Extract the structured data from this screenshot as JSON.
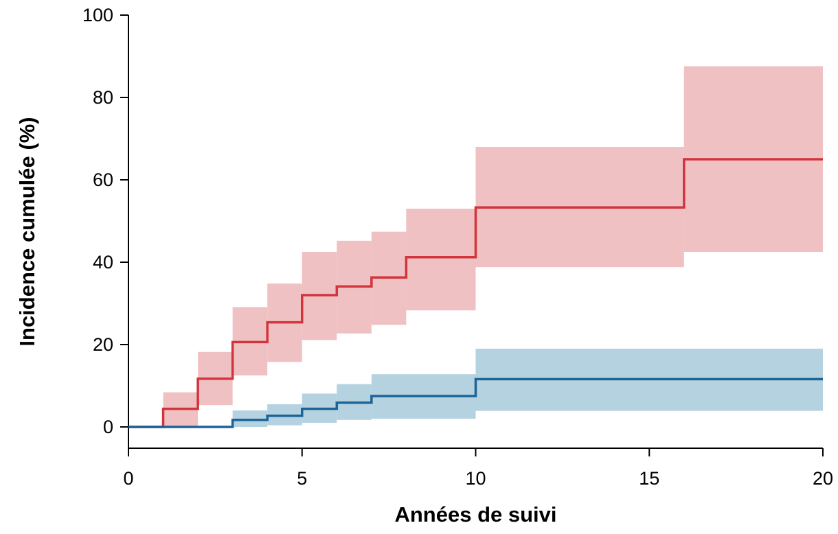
{
  "chart_data": {
    "type": "line",
    "step": true,
    "title": "",
    "xlabel": "Années de suivi",
    "ylabel": "Incidence cumulée (%)",
    "xlim": [
      0,
      20
    ],
    "ylim": [
      -5,
      100
    ],
    "x_ticks": [
      0,
      5,
      10,
      15,
      20
    ],
    "y_ticks": [
      0,
      20,
      40,
      60,
      80,
      100
    ],
    "x_tick_labels": [
      "0",
      "5",
      "10",
      "15",
      "20"
    ],
    "y_tick_labels": [
      "0",
      "20",
      "40",
      "60",
      "80",
      "100"
    ],
    "grid": false,
    "legend": "none",
    "series": [
      {
        "color": "#d2343c",
        "band_color": "#efc1c3",
        "steps": [
          {
            "x": 0,
            "y": 0,
            "lower": 0,
            "upper": 0
          },
          {
            "x": 1,
            "y": 4.4,
            "lower": 0,
            "upper": 8.4
          },
          {
            "x": 2,
            "y": 11.7,
            "lower": 5.3,
            "upper": 18.2
          },
          {
            "x": 3,
            "y": 20.6,
            "lower": 12.5,
            "upper": 29.1
          },
          {
            "x": 4,
            "y": 25.4,
            "lower": 15.8,
            "upper": 34.8
          },
          {
            "x": 5,
            "y": 32.0,
            "lower": 21.1,
            "upper": 42.5
          },
          {
            "x": 6,
            "y": 34.1,
            "lower": 22.7,
            "upper": 45.2
          },
          {
            "x": 7,
            "y": 36.3,
            "lower": 24.8,
            "upper": 47.4
          },
          {
            "x": 8,
            "y": 41.2,
            "lower": 28.3,
            "upper": 53.0
          },
          {
            "x": 10,
            "y": 53.3,
            "lower": 38.8,
            "upper": 68.0
          },
          {
            "x": 16,
            "y": 65.0,
            "lower": 42.5,
            "upper": 87.6
          }
        ],
        "end_x": 20
      },
      {
        "color": "#1b6398",
        "band_color": "#b5d2e1",
        "steps": [
          {
            "x": 0,
            "y": 0,
            "lower": 0,
            "upper": 0
          },
          {
            "x": 3,
            "y": 1.7,
            "lower": 0,
            "upper": 4.0
          },
          {
            "x": 4,
            "y": 2.7,
            "lower": 0.4,
            "upper": 5.5
          },
          {
            "x": 5,
            "y": 4.4,
            "lower": 1.0,
            "upper": 8.1
          },
          {
            "x": 6,
            "y": 5.9,
            "lower": 1.7,
            "upper": 10.4
          },
          {
            "x": 7,
            "y": 7.5,
            "lower": 2.0,
            "upper": 12.8
          },
          {
            "x": 10,
            "y": 11.6,
            "lower": 3.9,
            "upper": 19.0
          }
        ],
        "end_x": 20
      }
    ]
  }
}
